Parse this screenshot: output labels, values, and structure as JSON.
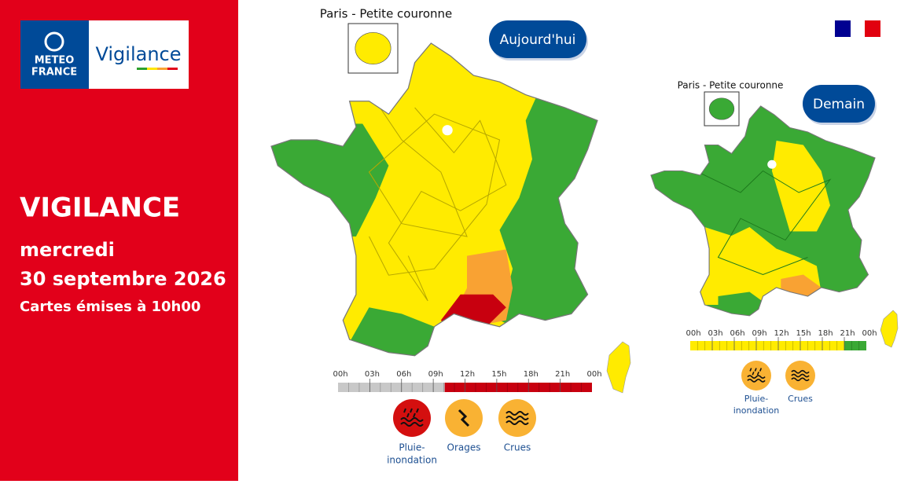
{
  "logo": {
    "brand_line1": "METEO",
    "brand_line2": "FRANCE",
    "product": "Vigilance"
  },
  "headline": {
    "title": "VIGILANCE",
    "day": "mercredi",
    "date": "30 septembre 2026",
    "issued": "Cartes émises à 10h00"
  },
  "maps": [
    {
      "label": "Aujourd'hui",
      "inset": "Paris - Petite couronne",
      "timeline": [
        "00h",
        "03h",
        "06h",
        "09h",
        "12h",
        "15h",
        "18h",
        "21h",
        "00h"
      ],
      "hazards": [
        {
          "name_lines": [
            "Pluie-",
            "inondation"
          ],
          "color": "#d40f0f"
        },
        {
          "name_lines": [
            "Orages"
          ],
          "color": "#f9b233"
        },
        {
          "name_lines": [
            "Crues"
          ],
          "color": "#f9b233"
        }
      ]
    },
    {
      "label": "Demain",
      "inset": "Paris - Petite couronne",
      "timeline": [
        "00h",
        "03h",
        "06h",
        "09h",
        "12h",
        "15h",
        "18h",
        "21h",
        "00h"
      ],
      "hazards": [
        {
          "name_lines": [
            "Pluie-",
            "inondation"
          ],
          "color": "#f9b233"
        },
        {
          "name_lines": [
            "Crues"
          ],
          "color": "#f9b233"
        }
      ]
    }
  ]
}
